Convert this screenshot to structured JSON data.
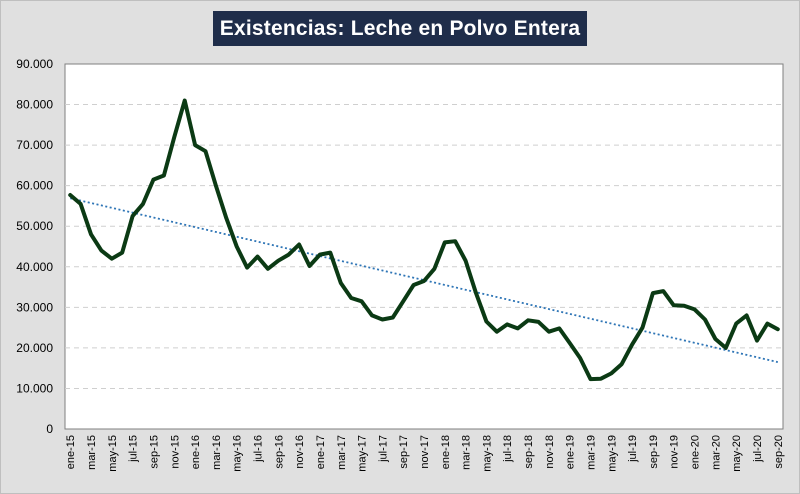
{
  "chart_data": {
    "type": "line",
    "title": "Existencias: Leche en Polvo Entera",
    "xlabel": "",
    "ylabel": "",
    "ylim": [
      0,
      90000
    ],
    "y_ticks": [
      "90.000",
      "80.000",
      "70.000",
      "60.000",
      "50.000",
      "40.000",
      "30.000",
      "20.000",
      "10.000",
      "0"
    ],
    "x_tick_labels": [
      "ene-15",
      "mar-15",
      "may-15",
      "jul-15",
      "sep-15",
      "nov-15",
      "ene-16",
      "mar-16",
      "may-16",
      "jul-16",
      "sep-16",
      "nov-16",
      "ene-17",
      "mar-17",
      "may-17",
      "jul-17",
      "sep-17",
      "nov-17",
      "ene-18",
      "mar-18",
      "may-18",
      "jul-18",
      "sep-18",
      "nov-18",
      "ene-19",
      "mar-19",
      "may-19",
      "jul-19",
      "sep-19",
      "nov-19",
      "ene-20",
      "mar-20",
      "may-20",
      "jul-20",
      "sep-20"
    ],
    "grid": "horizontal dashed",
    "series": [
      {
        "values": [
          57700,
          55500,
          48000,
          44000,
          42000,
          43500,
          52500,
          55500,
          61500,
          62500,
          72000,
          81000,
          70000,
          68500,
          60000,
          52000,
          45000,
          39800,
          42500,
          39500,
          41500,
          43000,
          45500,
          40200,
          43000,
          43500,
          36000,
          32300,
          31500,
          28000,
          27000,
          27500,
          31500,
          35500,
          36500,
          39500,
          46000,
          46300,
          41500,
          33500,
          26500,
          24000,
          25800,
          24800,
          26800,
          26400,
          24000,
          24800,
          21200,
          17500,
          12300,
          12400,
          13700,
          16000,
          20800,
          25000,
          33500,
          34000,
          30500,
          30400,
          29500,
          27000,
          22200,
          20000,
          26000,
          28000,
          21800,
          26000,
          24600
        ],
        "color": "#0b3a14"
      },
      {
        "type": "linear trendline",
        "values": [
          56900,
          16500
        ],
        "color": "#2e75b6"
      }
    ]
  }
}
